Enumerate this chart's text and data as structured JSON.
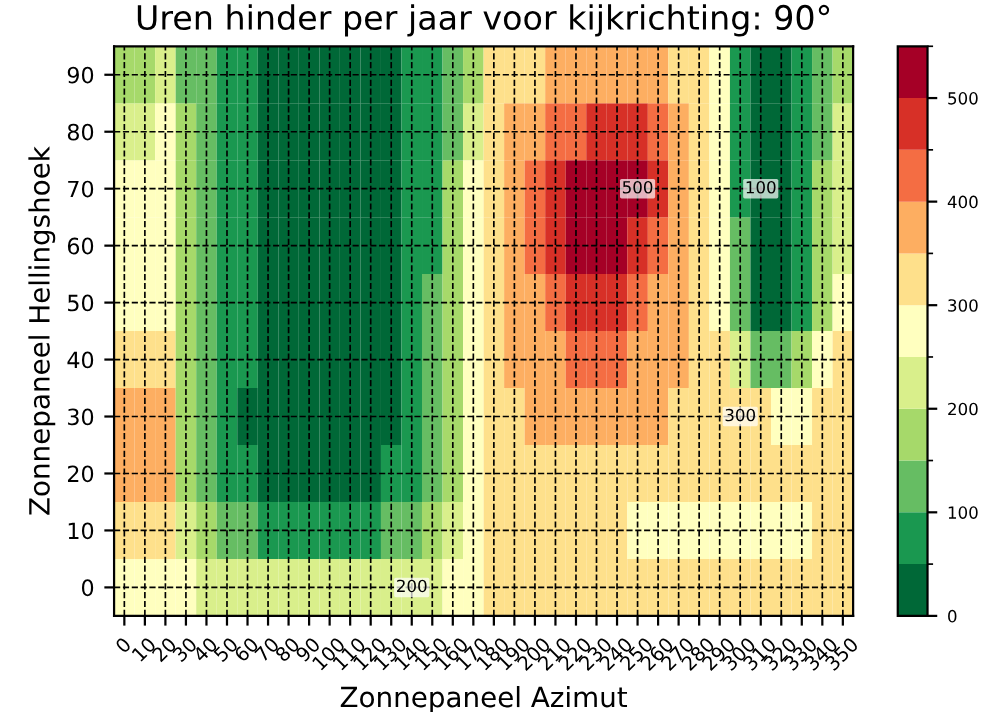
{
  "chart_data": {
    "type": "heatmap",
    "title": "Uren hinder per jaar voor kijkrichting: 90°",
    "xlabel": "Zonnepaneel Azimut",
    "ylabel": "Zonnepaneel Hellingshoek",
    "categories": [
      "0",
      "10",
      "20",
      "30",
      "40",
      "50",
      "60",
      "70",
      "80",
      "90",
      "100",
      "110",
      "120",
      "130",
      "140",
      "150",
      "160",
      "170",
      "180",
      "190",
      "200",
      "210",
      "220",
      "230",
      "240",
      "250",
      "260",
      "270",
      "280",
      "290",
      "300",
      "310",
      "320",
      "330",
      "340",
      "350"
    ],
    "y_categories": [
      "90",
      "80",
      "70",
      "60",
      "50",
      "40",
      "30",
      "20",
      "10",
      "0"
    ],
    "cells": [
      [
        150,
        150,
        200,
        100,
        100,
        50,
        50,
        0,
        0,
        0,
        0,
        0,
        0,
        0,
        50,
        50,
        100,
        150,
        300,
        300,
        300,
        350,
        350,
        350,
        350,
        350,
        350,
        300,
        300,
        250,
        50,
        0,
        0,
        50,
        100,
        150
      ],
      [
        200,
        200,
        250,
        150,
        100,
        50,
        50,
        0,
        0,
        0,
        0,
        0,
        0,
        0,
        50,
        50,
        100,
        200,
        300,
        350,
        350,
        400,
        400,
        450,
        450,
        450,
        400,
        350,
        300,
        250,
        50,
        0,
        0,
        50,
        100,
        200
      ],
      [
        250,
        250,
        250,
        150,
        100,
        50,
        50,
        0,
        0,
        0,
        0,
        0,
        0,
        0,
        50,
        50,
        150,
        250,
        300,
        350,
        400,
        450,
        500,
        500,
        500,
        500,
        450,
        350,
        300,
        250,
        50,
        0,
        0,
        50,
        150,
        200
      ],
      [
        250,
        250,
        250,
        150,
        100,
        50,
        50,
        0,
        0,
        0,
        0,
        0,
        0,
        0,
        50,
        50,
        150,
        250,
        300,
        350,
        400,
        450,
        500,
        500,
        500,
        450,
        400,
        350,
        300,
        250,
        100,
        0,
        0,
        50,
        150,
        200
      ],
      [
        250,
        250,
        250,
        150,
        100,
        50,
        50,
        0,
        0,
        0,
        0,
        0,
        0,
        0,
        50,
        100,
        150,
        250,
        300,
        350,
        350,
        400,
        450,
        450,
        450,
        400,
        350,
        350,
        300,
        250,
        100,
        0,
        0,
        50,
        150,
        250
      ],
      [
        300,
        300,
        300,
        150,
        100,
        50,
        50,
        0,
        0,
        0,
        0,
        0,
        0,
        0,
        50,
        100,
        150,
        250,
        300,
        350,
        350,
        350,
        400,
        400,
        400,
        350,
        350,
        350,
        300,
        300,
        200,
        100,
        100,
        150,
        250,
        300
      ],
      [
        350,
        350,
        350,
        150,
        100,
        50,
        0,
        0,
        0,
        0,
        0,
        0,
        0,
        0,
        50,
        100,
        150,
        250,
        300,
        300,
        350,
        350,
        350,
        350,
        350,
        350,
        350,
        300,
        300,
        300,
        300,
        300,
        250,
        250,
        300,
        300
      ],
      [
        350,
        350,
        350,
        150,
        100,
        50,
        50,
        0,
        0,
        0,
        0,
        0,
        0,
        50,
        50,
        100,
        150,
        250,
        300,
        300,
        300,
        300,
        300,
        300,
        300,
        300,
        300,
        300,
        300,
        300,
        300,
        300,
        300,
        300,
        300,
        300
      ],
      [
        300,
        300,
        300,
        200,
        150,
        100,
        100,
        50,
        50,
        50,
        50,
        50,
        50,
        100,
        100,
        150,
        200,
        250,
        300,
        300,
        300,
        300,
        300,
        300,
        300,
        250,
        250,
        250,
        250,
        250,
        250,
        250,
        250,
        250,
        300,
        300
      ],
      [
        250,
        250,
        250,
        250,
        200,
        200,
        200,
        200,
        200,
        200,
        200,
        200,
        200,
        200,
        200,
        200,
        250,
        250,
        300,
        300,
        300,
        300,
        300,
        300,
        300,
        300,
        300,
        300,
        300,
        300,
        300,
        300,
        300,
        300,
        300,
        300
      ]
    ],
    "clim": [
      0,
      550
    ],
    "cticks": [
      0,
      100,
      200,
      300,
      400,
      500
    ],
    "grid": true,
    "annotations": [
      {
        "text": "500",
        "x": "250",
        "y": "70"
      },
      {
        "text": "300",
        "x": "300",
        "y": "30"
      },
      {
        "text": "200",
        "x": "140",
        "y": "0"
      },
      {
        "text": "100",
        "x": "310",
        "y": "70"
      }
    ]
  }
}
